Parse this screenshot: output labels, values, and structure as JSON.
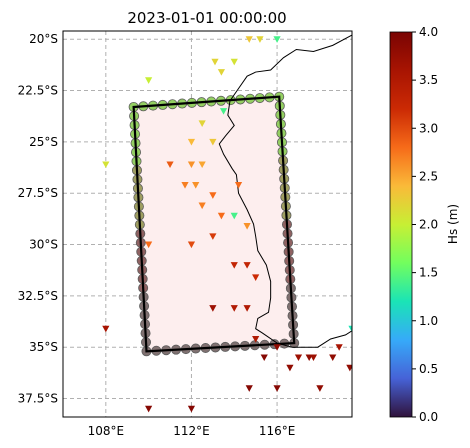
{
  "title": "2023-01-01 00:00:00",
  "map": {
    "lon_range": [
      106,
      119.5
    ],
    "lat_range": [
      -38.4,
      -19.6
    ],
    "x_ticks": [
      {
        "v": 108,
        "label": "108°E"
      },
      {
        "v": 112,
        "label": "112°E"
      },
      {
        "v": 116,
        "label": "116°E"
      }
    ],
    "y_ticks": [
      {
        "v": -20,
        "label": "20°S"
      },
      {
        "v": -22.5,
        "label": "22.5°S"
      },
      {
        "v": -25,
        "label": "25°S"
      },
      {
        "v": -27.5,
        "label": "27.5°S"
      },
      {
        "v": -30,
        "label": "30°S"
      },
      {
        "v": -32.5,
        "label": "32.5°S"
      },
      {
        "v": -35,
        "label": "35°S"
      },
      {
        "v": -37.5,
        "label": "37.5°S"
      }
    ],
    "gridlines": true,
    "domain_corners": [
      [
        109.3,
        -23.3
      ],
      [
        116.1,
        -22.8
      ],
      [
        116.8,
        -34.8
      ],
      [
        109.9,
        -35.2
      ]
    ],
    "coastline": [
      [
        119.5,
        -19.8
      ],
      [
        118.6,
        -20.3
      ],
      [
        117.7,
        -20.6
      ],
      [
        116.9,
        -20.5
      ],
      [
        116.3,
        -20.9
      ],
      [
        115.7,
        -21.5
      ],
      [
        115.0,
        -21.6
      ],
      [
        114.6,
        -21.8
      ],
      [
        114.2,
        -22.4
      ],
      [
        113.8,
        -23.0
      ],
      [
        113.7,
        -23.7
      ],
      [
        114.0,
        -24.2
      ],
      [
        113.6,
        -24.7
      ],
      [
        113.3,
        -25.1
      ],
      [
        113.5,
        -25.6
      ],
      [
        113.9,
        -26.3
      ],
      [
        114.1,
        -26.6
      ],
      [
        114.2,
        -27.5
      ],
      [
        114.6,
        -28.3
      ],
      [
        114.9,
        -29.0
      ],
      [
        115.0,
        -29.6
      ],
      [
        115.1,
        -30.3
      ],
      [
        115.5,
        -31.0
      ],
      [
        115.7,
        -31.8
      ],
      [
        115.7,
        -32.6
      ],
      [
        115.6,
        -33.3
      ],
      [
        115.1,
        -33.6
      ],
      [
        115.0,
        -34.1
      ],
      [
        115.3,
        -34.3
      ],
      [
        116.0,
        -34.8
      ],
      [
        116.7,
        -35.0
      ],
      [
        117.3,
        -35.0
      ],
      [
        117.9,
        -35.0
      ],
      [
        118.5,
        -34.6
      ],
      [
        119.2,
        -34.4
      ],
      [
        119.5,
        -34.2
      ]
    ],
    "stations": [
      {
        "lon": 114.7,
        "lat": -20.0,
        "hs": 2.3
      },
      {
        "lon": 115.2,
        "lat": -20.0,
        "hs": 2.2
      },
      {
        "lon": 116.0,
        "lat": -20.0,
        "hs": 1.4
      },
      {
        "lon": 110.0,
        "lat": -22.0,
        "hs": 2.0
      },
      {
        "lon": 113.1,
        "lat": -21.1,
        "hs": 2.2
      },
      {
        "lon": 113.4,
        "lat": -21.6,
        "hs": 2.2
      },
      {
        "lon": 114.0,
        "lat": -21.1,
        "hs": 2.1
      },
      {
        "lon": 113.5,
        "lat": -23.5,
        "hs": 1.4
      },
      {
        "lon": 112.5,
        "lat": -24.1,
        "hs": 2.2
      },
      {
        "lon": 112.0,
        "lat": -25.0,
        "hs": 2.4
      },
      {
        "lon": 113.0,
        "lat": -25.0,
        "hs": 2.3
      },
      {
        "lon": 108.0,
        "lat": -26.1,
        "hs": 2.1
      },
      {
        "lon": 111.0,
        "lat": -26.1,
        "hs": 2.9
      },
      {
        "lon": 112.0,
        "lat": -26.1,
        "hs": 2.6
      },
      {
        "lon": 112.5,
        "lat": -26.1,
        "hs": 2.5
      },
      {
        "lon": 111.7,
        "lat": -27.1,
        "hs": 2.7
      },
      {
        "lon": 112.2,
        "lat": -27.1,
        "hs": 2.6
      },
      {
        "lon": 114.2,
        "lat": -27.1,
        "hs": 2.8
      },
      {
        "lon": 113.0,
        "lat": -27.6,
        "hs": 2.8
      },
      {
        "lon": 112.5,
        "lat": -28.1,
        "hs": 2.7
      },
      {
        "lon": 113.4,
        "lat": -28.6,
        "hs": 2.8
      },
      {
        "lon": 114.0,
        "lat": -28.6,
        "hs": 1.4
      },
      {
        "lon": 114.6,
        "lat": -29.1,
        "hs": 2.6
      },
      {
        "lon": 113.0,
        "lat": -29.6,
        "hs": 3.1
      },
      {
        "lon": 110.0,
        "lat": -30.0,
        "hs": 2.8
      },
      {
        "lon": 112.0,
        "lat": -30.0,
        "hs": 3.0
      },
      {
        "lon": 114.0,
        "lat": -31.0,
        "hs": 3.3
      },
      {
        "lon": 114.6,
        "lat": -31.0,
        "hs": 3.3
      },
      {
        "lon": 115.0,
        "lat": -31.6,
        "hs": 3.2
      },
      {
        "lon": 113.0,
        "lat": -33.1,
        "hs": 3.7
      },
      {
        "lon": 114.0,
        "lat": -33.1,
        "hs": 3.5
      },
      {
        "lon": 114.6,
        "lat": -33.1,
        "hs": 3.5
      },
      {
        "lon": 108.0,
        "lat": -34.1,
        "hs": 3.6
      },
      {
        "lon": 115.0,
        "lat": -34.6,
        "hs": 3.5
      },
      {
        "lon": 115.4,
        "lat": -35.5,
        "hs": 3.9
      },
      {
        "lon": 116.0,
        "lat": -35.0,
        "hs": 3.8
      },
      {
        "lon": 117.0,
        "lat": -35.5,
        "hs": 3.7
      },
      {
        "lon": 117.5,
        "lat": -35.5,
        "hs": 3.8
      },
      {
        "lon": 117.7,
        "lat": -35.5,
        "hs": 3.7
      },
      {
        "lon": 116.6,
        "lat": -36.0,
        "hs": 3.8
      },
      {
        "lon": 118.9,
        "lat": -35.0,
        "hs": 3.6
      },
      {
        "lon": 118.6,
        "lat": -35.5,
        "hs": 3.8
      },
      {
        "lon": 119.4,
        "lat": -36.0,
        "hs": 3.8
      },
      {
        "lon": 119.5,
        "lat": -34.1,
        "hs": 1.2
      },
      {
        "lon": 114.7,
        "lat": -37.0,
        "hs": 3.9
      },
      {
        "lon": 116.0,
        "lat": -37.0,
        "hs": 3.9
      },
      {
        "lon": 118.0,
        "lat": -37.0,
        "hs": 3.8
      },
      {
        "lon": 110.0,
        "lat": -38.0,
        "hs": 3.9
      },
      {
        "lon": 112.0,
        "lat": -38.0,
        "hs": 3.9
      }
    ]
  },
  "colorbar": {
    "label": "Hs (m)",
    "vmin": 0,
    "vmax": 4,
    "ticks": [
      "0.0",
      "0.5",
      "1.0",
      "1.5",
      "2.0",
      "2.5",
      "3.0",
      "3.5",
      "4.0"
    ],
    "colormap": "turbo"
  }
}
